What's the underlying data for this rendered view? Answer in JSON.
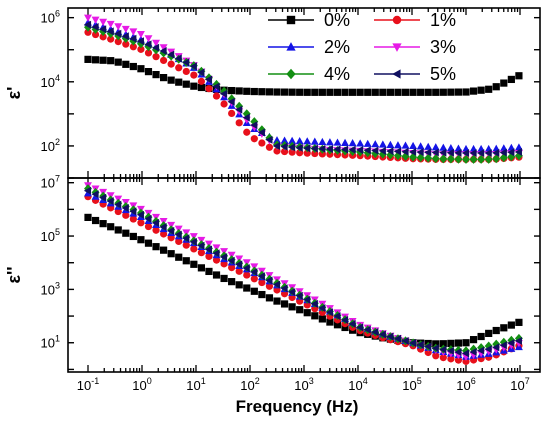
{
  "chart_data": {
    "type": "scatter",
    "xlabel": "Frequency (Hz)",
    "x_scale": "log",
    "xlim": [
      0.1,
      10000000
    ],
    "x_ticks": [
      {
        "base": "10",
        "exp": "-1",
        "value": 0.1
      },
      {
        "base": "10",
        "exp": "0",
        "value": 1
      },
      {
        "base": "10",
        "exp": "1",
        "value": 10
      },
      {
        "base": "10",
        "exp": "2",
        "value": 100
      },
      {
        "base": "10",
        "exp": "3",
        "value": 1000
      },
      {
        "base": "10",
        "exp": "4",
        "value": 10000
      },
      {
        "base": "10",
        "exp": "5",
        "value": 100000
      },
      {
        "base": "10",
        "exp": "6",
        "value": 1000000
      },
      {
        "base": "10",
        "exp": "7",
        "value": 10000000
      }
    ],
    "x_points": [
      0.1,
      0.3,
      1,
      3,
      10,
      30,
      100,
      300,
      1000,
      3000,
      10000,
      30000,
      100000,
      300000,
      1000000,
      3000000,
      10000000
    ],
    "legend": {
      "placement": "top-right",
      "columns": 2
    },
    "series_styles": [
      {
        "name": "0%",
        "color": "#000000",
        "marker": "square"
      },
      {
        "name": "1%",
        "color": "#e8101b",
        "marker": "circle"
      },
      {
        "name": "2%",
        "color": "#1414e6",
        "marker": "triangle-up"
      },
      {
        "name": "3%",
        "color": "#e61ae6",
        "marker": "triangle-down"
      },
      {
        "name": "4%",
        "color": "#138f13",
        "marker": "diamond"
      },
      {
        "name": "5%",
        "color": "#101060",
        "marker": "triangle-left"
      }
    ],
    "panels": [
      {
        "ylabel": "ε'",
        "y_scale": "log",
        "ylim": [
          10,
          2000000
        ],
        "y_ticks": [
          {
            "base": "10",
            "exp": "2",
            "value": 100
          },
          {
            "base": "10",
            "exp": "4",
            "value": 10000
          },
          {
            "base": "10",
            "exp": "6",
            "value": 1000000
          }
        ],
        "series": [
          {
            "name": "0%",
            "values": [
              50000,
              45000,
              25000,
              12000,
              7000,
              5500,
              5000,
              4800,
              4700,
              4700,
              4700,
              4700,
              4700,
              4700,
              4800,
              6000,
              16000
            ]
          },
          {
            "name": "1%",
            "values": [
              350000,
              200000,
              100000,
              40000,
              15000,
              2500,
              200,
              70,
              60,
              55,
              50,
              45,
              40,
              38,
              38,
              38,
              45
            ]
          },
          {
            "name": "2%",
            "values": [
              700000,
              400000,
              200000,
              80000,
              25000,
              4000,
              400,
              150,
              140,
              130,
              120,
              110,
              100,
              90,
              80,
              80,
              90
            ]
          },
          {
            "name": "3%",
            "values": [
              1000000,
              600000,
              300000,
              100000,
              30000,
              5000,
              500,
              100,
              85,
              75,
              70,
              65,
              60,
              55,
              55,
              55,
              60
            ]
          },
          {
            "name": "4%",
            "values": [
              500000,
              300000,
              150000,
              70000,
              30000,
              6000,
              800,
              110,
              90,
              75,
              65,
              55,
              45,
              40,
              38,
              38,
              50
            ]
          },
          {
            "name": "5%",
            "values": [
              600000,
              350000,
              180000,
              80000,
              28000,
              5000,
              600,
              100,
              85,
              80,
              75,
              70,
              65,
              62,
              60,
              60,
              65
            ]
          }
        ]
      },
      {
        "ylabel": "ε''",
        "y_scale": "log",
        "ylim": [
          0.8,
          15000000
        ],
        "y_ticks": [
          {
            "base": "10",
            "exp": "1",
            "value": 10
          },
          {
            "base": "10",
            "exp": "3",
            "value": 1000
          },
          {
            "base": "10",
            "exp": "5",
            "value": 100000
          },
          {
            "base": "10",
            "exp": "7",
            "value": 10000000
          }
        ],
        "series": [
          {
            "name": "0%",
            "values": [
              500000,
              200000,
              70000,
              25000,
              8000,
              2800,
              1000,
              380,
              150,
              60,
              25,
              15,
              10,
              9,
              10,
              25,
              60
            ]
          },
          {
            "name": "1%",
            "values": [
              3000000,
              1000000,
              300000,
              100000,
              30000,
              10000,
              3000,
              1000,
              300,
              100,
              30,
              15,
              8,
              3,
              2,
              3,
              8
            ]
          },
          {
            "name": "2%",
            "values": [
              4000000,
              1500000,
              500000,
              150000,
              50000,
              15000,
              5000,
              1500,
              450,
              150,
              45,
              20,
              10,
              5,
              3,
              4,
              7
            ]
          },
          {
            "name": "3%",
            "values": [
              8000000,
              3000000,
              1000000,
              300000,
              90000,
              30000,
              9000,
              2500,
              700,
              200,
              50,
              22,
              10,
              5,
              3,
              5,
              10
            ]
          },
          {
            "name": "4%",
            "values": [
              6000000,
              2000000,
              700000,
              200000,
              60000,
              20000,
              6000,
              1800,
              500,
              150,
              40,
              20,
              10,
              6,
              5,
              8,
              15
            ]
          },
          {
            "name": "5%",
            "values": [
              5000000,
              1800000,
              600000,
              180000,
              55000,
              18000,
              5500,
              1600,
              480,
              140,
              40,
              20,
              10,
              6,
              4,
              6,
              12
            ]
          }
        ]
      }
    ]
  }
}
